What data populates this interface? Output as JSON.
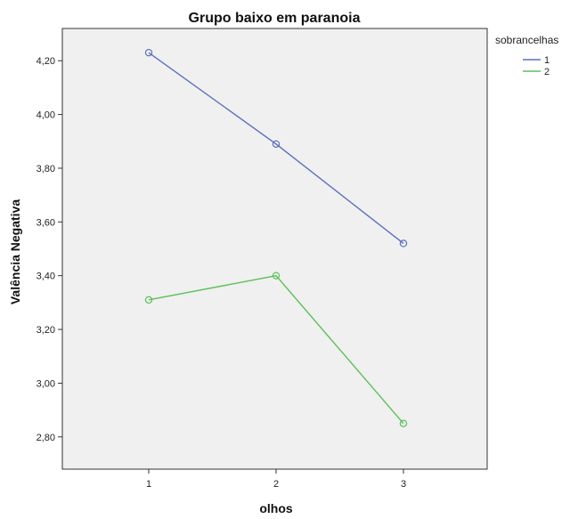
{
  "chart_data": {
    "type": "line",
    "title": "Grupo baixo em paranoia",
    "xlabel": "olhos",
    "ylabel": "Valência Negativa",
    "categories": [
      "1",
      "2",
      "3"
    ],
    "x_tick_labels": [
      "1",
      "2",
      "3"
    ],
    "y_ticks": [
      2.8,
      3.0,
      3.2,
      3.4,
      3.6,
      3.8,
      4.0,
      4.2
    ],
    "y_tick_labels": [
      "2,80",
      "3,00",
      "3,20",
      "3,40",
      "3,60",
      "3,80",
      "4,00",
      "4,20"
    ],
    "ylim": [
      2.68,
      4.32
    ],
    "grid": false,
    "legend": {
      "title": "sobrancelhas",
      "position": "top-right, outside plot"
    },
    "series": [
      {
        "name": "1",
        "color": "#5b6fbe",
        "values": [
          4.23,
          3.89,
          3.52
        ]
      },
      {
        "name": "2",
        "color": "#5dbf5a",
        "values": [
          3.31,
          3.4,
          2.85
        ]
      }
    ]
  }
}
